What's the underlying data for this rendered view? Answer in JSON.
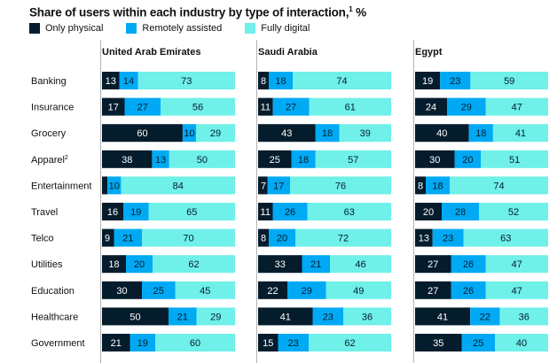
{
  "colors": {
    "physical": "#051c2c",
    "assisted": "#00a9f4",
    "digital": "#6ff0e9",
    "divider": "#b3b3b3"
  },
  "title": {
    "text": "Share of users within each industry by type of interaction,",
    "footnote": "1",
    "unit": " %"
  },
  "legend": [
    {
      "label": "Only physical",
      "series": "physical"
    },
    {
      "label": "Remotely assisted",
      "series": "assisted"
    },
    {
      "label": "Fully digital",
      "series": "digital"
    }
  ],
  "chart_data": {
    "type": "bar",
    "orientation": "horizontal",
    "stacked": true,
    "title": "Share of users within each industry by type of interaction,¹ %",
    "categories": [
      "Banking",
      "Insurance",
      "Grocery",
      "Apparel",
      "Entertainment",
      "Travel",
      "Telco",
      "Utilities",
      "Education",
      "Healthcare",
      "Government"
    ],
    "category_labels": [
      "Banking",
      "Insurance",
      "Grocery",
      "Apparel²",
      "Entertainment",
      "Travel",
      "Telco",
      "Utilities",
      "Education",
      "Healthcare",
      "Government"
    ],
    "legend_position": "top-left",
    "xlim": [
      0,
      100
    ],
    "panels": [
      {
        "title": "United Arab Emirates",
        "series": [
          {
            "name": "Only physical",
            "values": [
              13,
              17,
              60,
              38,
              4,
              16,
              9,
              18,
              30,
              50,
              21
            ],
            "labels": [
              "13",
              "17",
              "60",
              "38",
              "",
              "16",
              "9",
              "18",
              "30",
              "50",
              "21"
            ]
          },
          {
            "name": "Remotely assisted",
            "values": [
              14,
              27,
              10,
              13,
              10,
              19,
              21,
              20,
              25,
              21,
              19
            ],
            "labels": [
              "14",
              "27",
              "10",
              "13",
              "10",
              "19",
              "21",
              "20",
              "25",
              "21",
              "19"
            ]
          },
          {
            "name": "Fully digital",
            "values": [
              73,
              56,
              29,
              50,
              84,
              65,
              70,
              62,
              45,
              29,
              60
            ],
            "labels": [
              "73",
              "56",
              "29",
              "50",
              "84",
              "65",
              "70",
              "62",
              "45",
              "29",
              "60"
            ]
          }
        ]
      },
      {
        "title": "Saudi Arabia",
        "series": [
          {
            "name": "Only physical",
            "values": [
              8,
              11,
              43,
              25,
              7,
              11,
              8,
              33,
              22,
              41,
              15
            ],
            "labels": [
              "8",
              "11",
              "43",
              "25",
              "7",
              "11",
              "8",
              "33",
              "22",
              "41",
              "15"
            ]
          },
          {
            "name": "Remotely assisted",
            "values": [
              18,
              27,
              18,
              18,
              17,
              26,
              20,
              21,
              29,
              23,
              23
            ],
            "labels": [
              "18",
              "27",
              "18",
              "18",
              "17",
              "26",
              "20",
              "21",
              "29",
              "23",
              "23"
            ]
          },
          {
            "name": "Fully digital",
            "values": [
              74,
              61,
              39,
              57,
              76,
              63,
              72,
              46,
              49,
              36,
              62
            ],
            "labels": [
              "74",
              "61",
              "39",
              "57",
              "76",
              "63",
              "72",
              "46",
              "49",
              "36",
              "62"
            ]
          }
        ]
      },
      {
        "title": "Egypt",
        "series": [
          {
            "name": "Only physical",
            "values": [
              19,
              24,
              40,
              30,
              8,
              20,
              13,
              27,
              27,
              41,
              35
            ],
            "labels": [
              "19",
              "24",
              "40",
              "30",
              "8",
              "20",
              "13",
              "27",
              "27",
              "41",
              "35"
            ]
          },
          {
            "name": "Remotely assisted",
            "values": [
              23,
              29,
              18,
              20,
              18,
              28,
              23,
              26,
              26,
              22,
              25
            ],
            "labels": [
              "23",
              "29",
              "18",
              "20",
              "18",
              "28",
              "23",
              "26",
              "26",
              "22",
              "25"
            ]
          },
          {
            "name": "Fully digital",
            "values": [
              59,
              47,
              41,
              51,
              74,
              52,
              63,
              47,
              47,
              36,
              40
            ],
            "labels": [
              "59",
              "47",
              "41",
              "51",
              "74",
              "52",
              "63",
              "47",
              "47",
              "36",
              "40"
            ]
          }
        ]
      }
    ]
  }
}
